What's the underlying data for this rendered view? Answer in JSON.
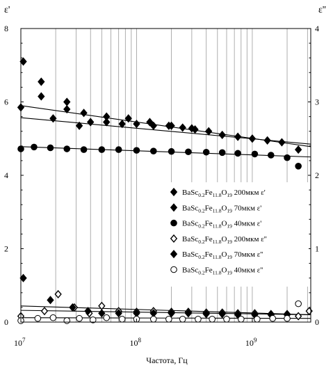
{
  "chart_data": {
    "type": "scatter",
    "xlabel": "Частота, Гц",
    "ylabel_left": "ε'",
    "ylabel_right": "ε''",
    "xscale": "log",
    "xlim": [
      10000000.0,
      3200000000.0
    ],
    "ylim_left": [
      0,
      8
    ],
    "ylim_right": [
      0,
      4
    ],
    "y_ticks_left": [
      "0",
      "2",
      "4",
      "6",
      "8"
    ],
    "y_ticks_right": [
      "0",
      "1",
      "2",
      "3",
      "4"
    ],
    "x_ticks": [
      {
        "base": "10",
        "exp": "7"
      },
      {
        "base": "10",
        "exp": "8"
      },
      {
        "base": "10",
        "exp": "9"
      }
    ],
    "grid": "vertical",
    "legend_position": "right",
    "series": [
      {
        "name": "BaSc0.2Fe11.8O19 200мкм ε'",
        "formula": [
          "BaSc",
          "0.2",
          "Fe",
          "11.8",
          "O",
          "19"
        ],
        "size": "200мкм",
        "quantity": "ε'",
        "marker": "diamond-filled",
        "axis": "left",
        "x": [
          10500000.0,
          15000000.0,
          25000000.0,
          35000000.0,
          55000000.0,
          85000000.0,
          130000000.0,
          200000000.0,
          300000000.0
        ],
        "y": [
          7.1,
          6.55,
          6.0,
          5.7,
          5.6,
          5.55,
          5.45,
          5.35,
          5.28
        ]
      },
      {
        "name": "BaSc0.2Fe11.8O19 70мкм ε'",
        "formula": [
          "BaSc",
          "0.2",
          "Fe",
          "11.8",
          "O",
          "19"
        ],
        "size": "70мкм",
        "quantity": "ε'",
        "marker": "diamond-filled",
        "axis": "left",
        "x": [
          10000000.0,
          15000000.0,
          19000000.0,
          25000000.0,
          32000000.0,
          40000000.0,
          55000000.0,
          75000000.0,
          100000000.0,
          140000000.0,
          190000000.0,
          250000000.0,
          320000000.0,
          420000000.0,
          550000000.0,
          750000000.0,
          1000000000.0,
          1350000000.0,
          1800000000.0,
          2500000000.0
        ],
        "y": [
          5.85,
          6.15,
          5.55,
          5.8,
          5.35,
          5.45,
          5.45,
          5.4,
          5.4,
          5.35,
          5.35,
          5.3,
          5.25,
          5.2,
          5.1,
          5.05,
          5.0,
          4.95,
          4.9,
          4.7
        ]
      },
      {
        "name": "BaSc0.2Fe11.8O19 40мкм ε'",
        "formula": [
          "BaSc",
          "0.2",
          "Fe",
          "11.8",
          "O",
          "19"
        ],
        "size": "40мкм",
        "quantity": "ε'",
        "marker": "circle-filled",
        "axis": "left",
        "x": [
          10000000.0,
          13000000.0,
          18000000.0,
          25000000.0,
          35000000.0,
          50000000.0,
          70000000.0,
          100000000.0,
          140000000.0,
          200000000.0,
          280000000.0,
          400000000.0,
          550000000.0,
          750000000.0,
          1050000000.0,
          1450000000.0,
          2000000000.0,
          2500000000.0
        ],
        "y": [
          4.72,
          4.77,
          4.75,
          4.72,
          4.7,
          4.7,
          4.7,
          4.68,
          4.66,
          4.65,
          4.64,
          4.63,
          4.62,
          4.6,
          4.58,
          4.55,
          4.48,
          4.25
        ]
      },
      {
        "name": "BaSc0.2Fe11.8O19 200мкм ε''",
        "formula": [
          "BaSc",
          "0.2",
          "Fe",
          "11.8",
          "O",
          "19"
        ],
        "size": "200мкм",
        "quantity": "ε''",
        "marker": "diamond-open",
        "axis": "right",
        "x": [
          10000000.0,
          16000000.0,
          21000000.0,
          29000000.0,
          39000000.0,
          50000000.0,
          70000000.0,
          100000000.0,
          140000000.0,
          200000000.0,
          280000000.0,
          400000000.0,
          550000000.0,
          750000000.0,
          1050000000.0,
          1450000000.0,
          2000000000.0,
          2500000000.0,
          3100000000.0
        ],
        "y": [
          0.08,
          0.15,
          0.38,
          0.2,
          0.12,
          0.22,
          0.15,
          0.14,
          0.15,
          0.14,
          0.14,
          0.13,
          0.13,
          0.12,
          0.12,
          0.11,
          0.11,
          0.08,
          0.15
        ]
      },
      {
        "name": "BaSc0.2Fe11.8O19 70мкм ε''",
        "formula": [
          "BaSc",
          "0.2",
          "Fe",
          "11.8",
          "O",
          "19"
        ],
        "size": "70мкм",
        "quantity": "ε''",
        "marker": "diamond-filled",
        "axis": "right",
        "x": [
          10500000.0,
          18000000.0,
          28000000.0,
          38000000.0,
          50000000.0,
          70000000.0,
          100000000.0,
          140000000.0,
          200000000.0,
          280000000.0,
          400000000.0,
          550000000.0,
          750000000.0,
          1050000000.0,
          1450000000.0,
          2000000000.0
        ],
        "y": [
          0.6,
          0.3,
          0.2,
          0.15,
          0.12,
          0.12,
          0.12,
          0.12,
          0.12,
          0.12,
          0.11,
          0.11,
          0.1,
          0.1,
          0.1,
          0.1
        ]
      },
      {
        "name": "BaSc0.2Fe11.8O19 40мкм ε''",
        "formula": [
          "BaSc",
          "0.2",
          "Fe",
          "11.8",
          "O",
          "19"
        ],
        "size": "40мкм",
        "quantity": "ε''",
        "marker": "circle-open",
        "axis": "right",
        "x": [
          10000000.0,
          14000000.0,
          19000000.0,
          25000000.0,
          32000000.0,
          42000000.0,
          55000000.0,
          75000000.0,
          100000000.0,
          140000000.0,
          190000000.0,
          250000000.0,
          340000000.0,
          450000000.0,
          600000000.0,
          800000000.0,
          1100000000.0,
          1500000000.0,
          2000000000.0,
          2500000000.0
        ],
        "y": [
          0.02,
          0.05,
          0.06,
          0.02,
          0.05,
          0.03,
          0.06,
          0.04,
          0.04,
          0.04,
          0.04,
          0.04,
          0.04,
          0.04,
          0.04,
          0.04,
          0.04,
          0.05,
          0.05,
          0.25
        ]
      }
    ],
    "trend_lines": [
      {
        "axis": "left",
        "x": [
          10000000.0,
          3200000000.0
        ],
        "y": [
          5.9,
          4.78
        ]
      },
      {
        "axis": "left",
        "x": [
          10000000.0,
          3200000000.0
        ],
        "y": [
          5.57,
          4.85
        ]
      },
      {
        "axis": "left",
        "x": [
          10000000.0,
          3200000000.0
        ],
        "y": [
          4.78,
          4.5
        ]
      },
      {
        "axis": "right",
        "x": [
          10000000.0,
          3200000000.0
        ],
        "y": [
          0.22,
          0.1
        ]
      },
      {
        "axis": "right",
        "x": [
          10000000.0,
          3200000000.0
        ],
        "y": [
          0.16,
          0.1
        ]
      },
      {
        "axis": "right",
        "x": [
          10000000.0,
          3200000000.0
        ],
        "y": [
          0.06,
          0.05
        ]
      }
    ]
  }
}
